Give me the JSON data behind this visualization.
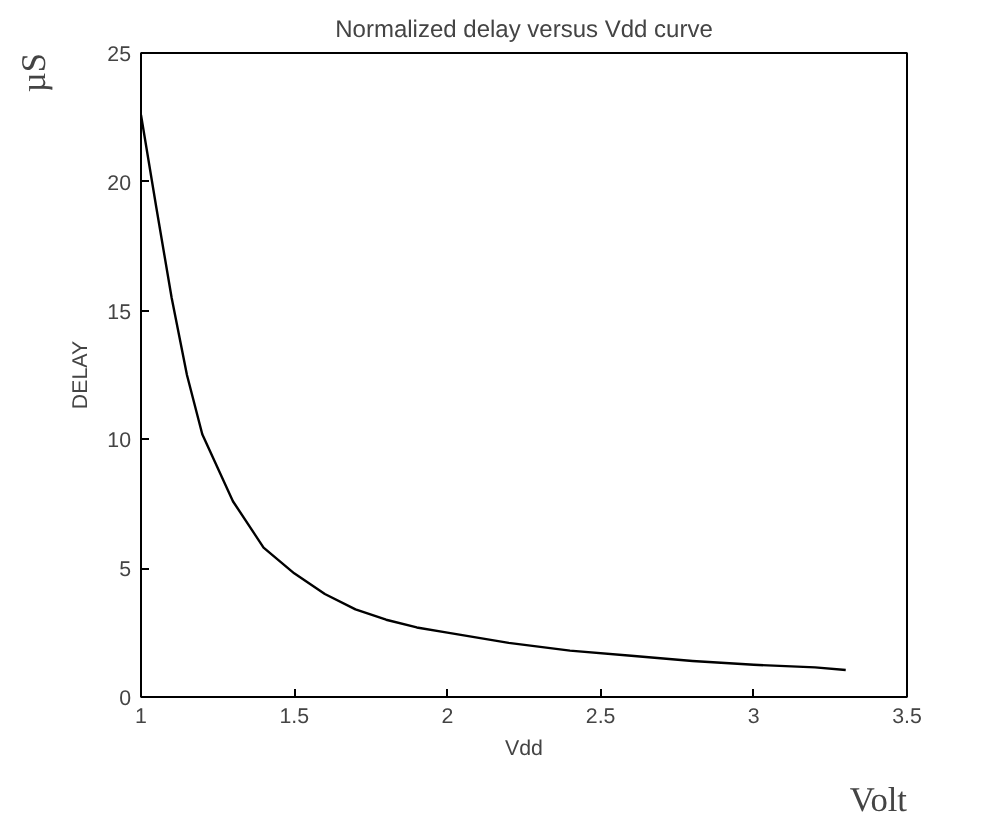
{
  "chart_data": {
    "type": "line",
    "title": "Normalized delay versus Vdd curve",
    "xlabel": "Vdd",
    "ylabel": "DELAY",
    "annotations": [
      "µS",
      "Volt"
    ],
    "x": [
      1.0,
      1.05,
      1.1,
      1.15,
      1.2,
      1.3,
      1.4,
      1.5,
      1.6,
      1.7,
      1.8,
      1.9,
      2.0,
      2.2,
      2.4,
      2.6,
      2.8,
      3.0,
      3.2,
      3.3
    ],
    "series": [
      {
        "color": "#000000",
        "values": [
          22.6,
          19,
          15.5,
          12.5,
          10.2,
          7.6,
          5.8,
          4.8,
          4.0,
          3.4,
          3.0,
          2.7,
          2.5,
          2.1,
          1.8,
          1.6,
          1.4,
          1.25,
          1.15,
          1.05
        ]
      }
    ],
    "xlim": [
      1,
      3.5
    ],
    "ylim": [
      0,
      25
    ],
    "xticks": [
      1,
      1.5,
      2,
      2.5,
      3,
      3.5
    ],
    "yticks": [
      0,
      5,
      10,
      15,
      20,
      25
    ],
    "grid": false,
    "marker": "none",
    "line_style": "solid"
  }
}
